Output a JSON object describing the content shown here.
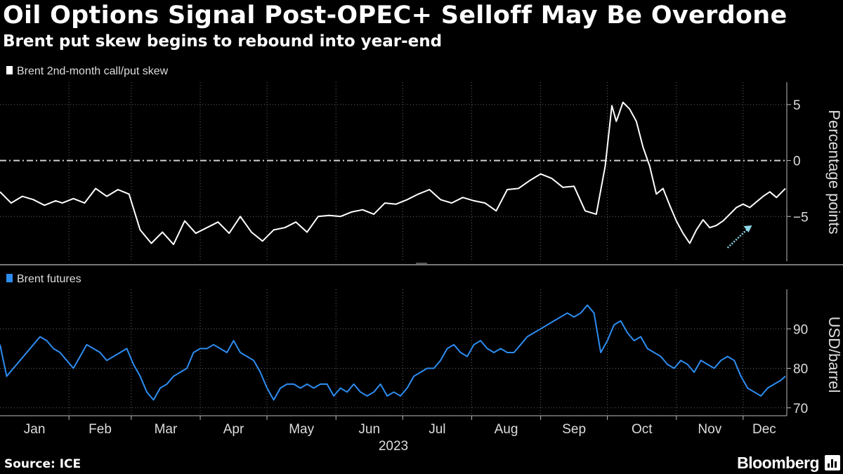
{
  "title": "Oil Options Signal Post-OPEC+ Selloff May Be Overdone",
  "subtitle": "Brent put skew begins to rebound into year-end",
  "source": "Source: ICE",
  "brand": "Bloomberg",
  "colors": {
    "background": "#000000",
    "skew_line": "#ffffff",
    "futures_line": "#2d8cf0",
    "annotation_arrow": "#8fd8e8",
    "grid": "#666666"
  },
  "chart_data": [
    {
      "type": "line",
      "legend": "Brent 2nd-month call/put skew",
      "ylabel": "Percentage points",
      "ylim": [
        -9,
        7
      ],
      "yticks": [
        5,
        0,
        -5
      ],
      "reference_line": 0,
      "grid": true,
      "x_range": [
        "2023-01-01",
        "2023-12-20"
      ],
      "annotation": "rising arrow late November to early December",
      "series": [
        {
          "x": [
            "2023-01-01",
            "2023-01-06",
            "2023-01-11",
            "2023-01-16",
            "2023-01-21",
            "2023-01-26",
            "2023-01-29",
            "2023-02-03",
            "2023-02-08",
            "2023-02-13",
            "2023-02-18",
            "2023-02-23",
            "2023-02-28",
            "2023-03-05",
            "2023-03-10",
            "2023-03-15",
            "2023-03-20",
            "2023-03-25",
            "2023-03-30",
            "2023-04-04",
            "2023-04-09",
            "2023-04-14",
            "2023-04-19",
            "2023-04-24",
            "2023-04-29",
            "2023-05-04",
            "2023-05-09",
            "2023-05-14",
            "2023-05-19",
            "2023-05-24",
            "2023-05-29",
            "2023-06-03",
            "2023-06-08",
            "2023-06-13",
            "2023-06-18",
            "2023-06-23",
            "2023-06-28",
            "2023-07-03",
            "2023-07-08",
            "2023-07-13",
            "2023-07-18",
            "2023-07-23",
            "2023-07-28",
            "2023-08-02",
            "2023-08-07",
            "2023-08-12",
            "2023-08-17",
            "2023-08-22",
            "2023-08-27",
            "2023-09-01",
            "2023-09-06",
            "2023-09-11",
            "2023-09-16",
            "2023-09-21",
            "2023-09-26",
            "2023-09-30",
            "2023-10-03",
            "2023-10-05",
            "2023-10-08",
            "2023-10-11",
            "2023-10-14",
            "2023-10-17",
            "2023-10-20",
            "2023-10-23",
            "2023-10-26",
            "2023-10-29",
            "2023-11-01",
            "2023-11-04",
            "2023-11-07",
            "2023-11-10",
            "2023-11-13",
            "2023-11-16",
            "2023-11-19",
            "2023-11-22",
            "2023-11-25",
            "2023-11-28",
            "2023-12-01",
            "2023-12-04",
            "2023-12-07",
            "2023-12-10",
            "2023-12-13",
            "2023-12-16",
            "2023-12-20"
          ],
          "y": [
            -2.8,
            -3.8,
            -3.2,
            -3.5,
            -4.0,
            -3.6,
            -3.8,
            -3.4,
            -3.8,
            -2.5,
            -3.2,
            -2.6,
            -3.0,
            -6.2,
            -7.4,
            -6.4,
            -7.5,
            -5.4,
            -6.5,
            -6.0,
            -5.5,
            -6.5,
            -5.0,
            -6.4,
            -7.2,
            -6.2,
            -6.0,
            -5.5,
            -6.4,
            -5.0,
            -4.9,
            -5.0,
            -4.6,
            -4.4,
            -4.8,
            -3.8,
            -3.9,
            -3.5,
            -3.0,
            -2.6,
            -3.5,
            -3.8,
            -3.3,
            -3.6,
            -3.8,
            -4.5,
            -2.6,
            -2.5,
            -1.8,
            -1.2,
            -1.6,
            -2.4,
            -2.3,
            -4.5,
            -4.8,
            -0.5,
            4.9,
            3.5,
            5.2,
            4.6,
            3.5,
            1.2,
            -0.5,
            -3.0,
            -2.5,
            -4.0,
            -5.4,
            -6.5,
            -7.4,
            -6.2,
            -5.3,
            -6.0,
            -5.8,
            -5.4,
            -4.8,
            -4.2,
            -3.9,
            -4.2,
            -3.7,
            -3.2,
            -2.8,
            -3.3,
            -2.5
          ]
        }
      ]
    },
    {
      "type": "line",
      "legend": "Brent futures",
      "ylabel": "USD/barrel",
      "ylim": [
        68,
        100
      ],
      "yticks": [
        90,
        80,
        70
      ],
      "grid": true,
      "x_range": [
        "2023-01-01",
        "2023-12-20"
      ],
      "series": [
        {
          "x": [
            "2023-01-01",
            "2023-01-04",
            "2023-01-07",
            "2023-01-10",
            "2023-01-13",
            "2023-01-16",
            "2023-01-19",
            "2023-01-22",
            "2023-01-25",
            "2023-01-28",
            "2023-01-31",
            "2023-02-03",
            "2023-02-06",
            "2023-02-09",
            "2023-02-12",
            "2023-02-15",
            "2023-02-18",
            "2023-02-21",
            "2023-02-24",
            "2023-02-27",
            "2023-03-02",
            "2023-03-05",
            "2023-03-08",
            "2023-03-11",
            "2023-03-14",
            "2023-03-17",
            "2023-03-20",
            "2023-03-23",
            "2023-03-26",
            "2023-03-29",
            "2023-04-01",
            "2023-04-04",
            "2023-04-07",
            "2023-04-10",
            "2023-04-13",
            "2023-04-16",
            "2023-04-19",
            "2023-04-22",
            "2023-04-25",
            "2023-04-28",
            "2023-05-01",
            "2023-05-04",
            "2023-05-07",
            "2023-05-10",
            "2023-05-13",
            "2023-05-16",
            "2023-05-19",
            "2023-05-22",
            "2023-05-25",
            "2023-05-28",
            "2023-05-31",
            "2023-06-03",
            "2023-06-06",
            "2023-06-09",
            "2023-06-12",
            "2023-06-15",
            "2023-06-18",
            "2023-06-21",
            "2023-06-24",
            "2023-06-27",
            "2023-06-30",
            "2023-07-03",
            "2023-07-06",
            "2023-07-09",
            "2023-07-12",
            "2023-07-15",
            "2023-07-18",
            "2023-07-21",
            "2023-07-24",
            "2023-07-27",
            "2023-07-30",
            "2023-08-02",
            "2023-08-05",
            "2023-08-08",
            "2023-08-11",
            "2023-08-14",
            "2023-08-17",
            "2023-08-20",
            "2023-08-23",
            "2023-08-26",
            "2023-08-29",
            "2023-09-01",
            "2023-09-04",
            "2023-09-07",
            "2023-09-10",
            "2023-09-13",
            "2023-09-16",
            "2023-09-19",
            "2023-09-22",
            "2023-09-25",
            "2023-09-28",
            "2023-10-01",
            "2023-10-04",
            "2023-10-07",
            "2023-10-10",
            "2023-10-13",
            "2023-10-16",
            "2023-10-19",
            "2023-10-22",
            "2023-10-25",
            "2023-10-28",
            "2023-10-31",
            "2023-11-03",
            "2023-11-06",
            "2023-11-09",
            "2023-11-12",
            "2023-11-15",
            "2023-11-18",
            "2023-11-21",
            "2023-11-24",
            "2023-11-27",
            "2023-11-30",
            "2023-12-03",
            "2023-12-06",
            "2023-12-09",
            "2023-12-12",
            "2023-12-15",
            "2023-12-18",
            "2023-12-20"
          ],
          "y": [
            86,
            78,
            80,
            82,
            84,
            86,
            88,
            87,
            85,
            84,
            82,
            80,
            83,
            86,
            85,
            84,
            82,
            83,
            84,
            85,
            81,
            78,
            74,
            72,
            75,
            76,
            78,
            79,
            80,
            84,
            85,
            85,
            86,
            85,
            84,
            87,
            84,
            83,
            82,
            79,
            75,
            72,
            75,
            76,
            76,
            75,
            76,
            75,
            76,
            76,
            73,
            75,
            74,
            76,
            74,
            73,
            74,
            76,
            73,
            74,
            73,
            75,
            78,
            79,
            80,
            80,
            82,
            85,
            86,
            84,
            83,
            86,
            87,
            85,
            84,
            85,
            84,
            84,
            86,
            88,
            89,
            90,
            91,
            92,
            93,
            94,
            93,
            94,
            96,
            94,
            84,
            87,
            91,
            92,
            89,
            87,
            88,
            85,
            84,
            83,
            81,
            80,
            82,
            81,
            79,
            82,
            81,
            80,
            82,
            83,
            82,
            78,
            75,
            74,
            73,
            75,
            76,
            77,
            78
          ]
        }
      ]
    }
  ],
  "x_axis": {
    "months": [
      "Jan",
      "Feb",
      "Mar",
      "Apr",
      "May",
      "Jun",
      "Jul",
      "Aug",
      "Sep",
      "Oct",
      "Nov",
      "Dec"
    ],
    "year": "2023"
  }
}
